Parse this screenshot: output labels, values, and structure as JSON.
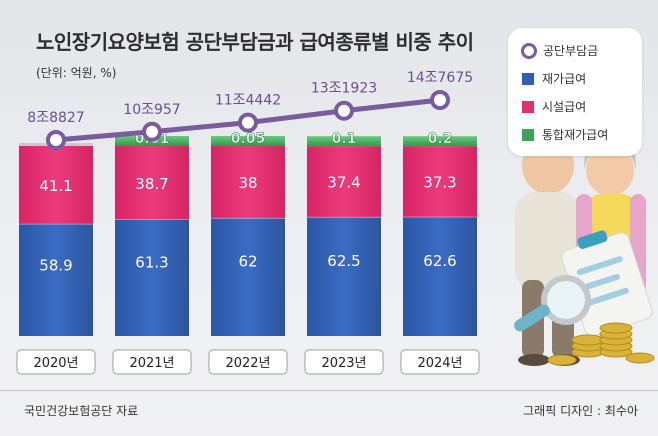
{
  "title": "노인장기요양보험 공단부담금과 급여종류별 비중 추이",
  "unit": "(단위: 억원, %)",
  "source": "국민건강보험공단 자료",
  "credit": "그래픽 디자인 : 최수아",
  "legend": {
    "items": [
      {
        "label": "공단부담금",
        "color": "#7a5b9c",
        "kind": "line"
      },
      {
        "label": "재가급여",
        "color": "#2f5fb5",
        "kind": "bar"
      },
      {
        "label": "시설급여",
        "color": "#e0306f",
        "kind": "bar"
      },
      {
        "label": "통합재가급여",
        "color": "#3aa55a",
        "kind": "bar"
      }
    ]
  },
  "colors": {
    "home_care": "#2f5fb5",
    "facility": "#e0306f",
    "integrated": "#3aa55a",
    "line": "#7a5b9c"
  },
  "chart_data": {
    "type": "bar",
    "stacked": true,
    "categories": [
      "2020년",
      "2021년",
      "2022년",
      "2023년",
      "2024년"
    ],
    "series": [
      {
        "name": "재가급여",
        "values": [
          58.9,
          61.3,
          62,
          62.5,
          62.6
        ]
      },
      {
        "name": "시설급여",
        "values": [
          41.1,
          38.7,
          38,
          37.4,
          37.3
        ]
      },
      {
        "name": "통합재가급여",
        "values": [
          null,
          0.01,
          0.05,
          0.1,
          0.2
        ]
      }
    ],
    "line_series": {
      "name": "공단부담금",
      "labels": [
        "8조8827",
        "10조957",
        "11조4442",
        "13조1923",
        "14조7675"
      ],
      "values": [
        88827,
        100957,
        114442,
        131923,
        147675
      ]
    },
    "ylim": [
      0,
      100
    ]
  }
}
